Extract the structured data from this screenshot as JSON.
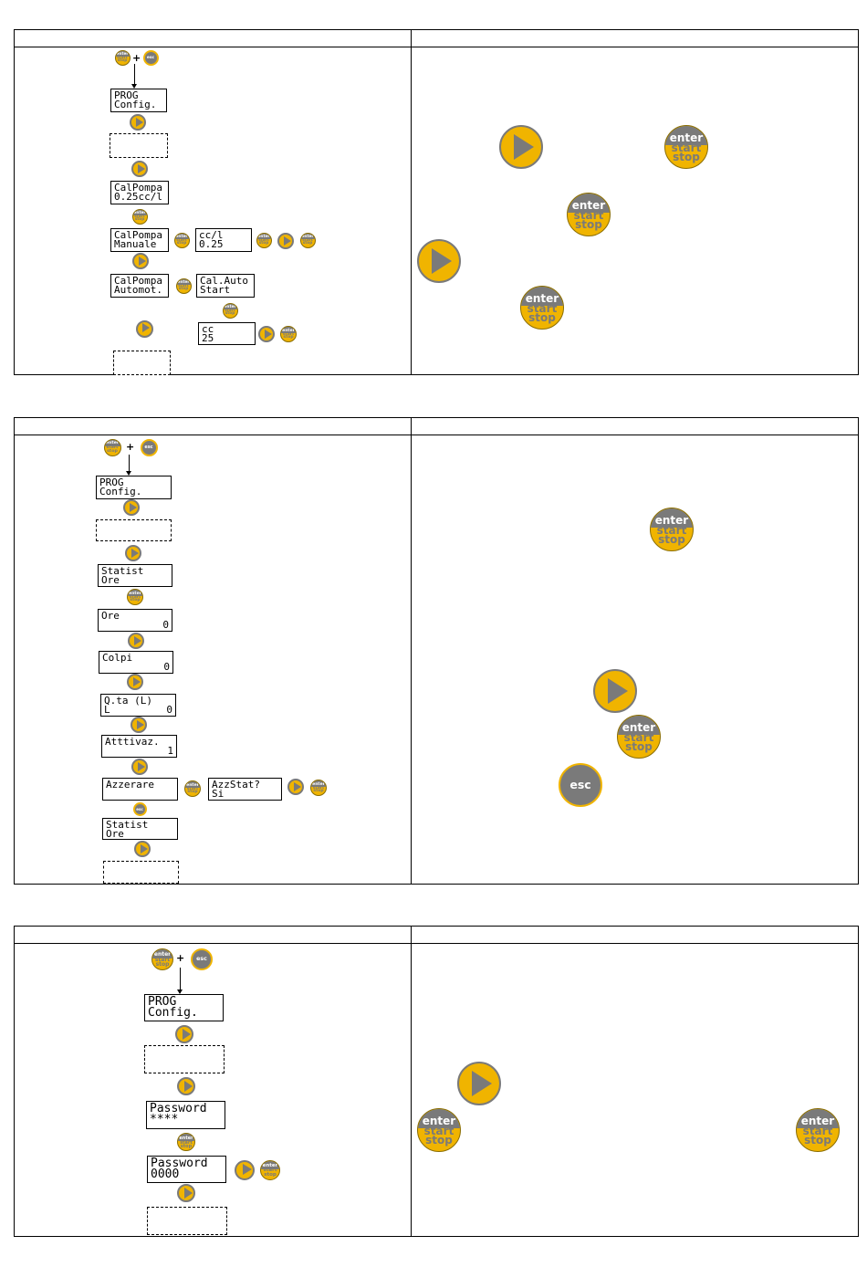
{
  "panel1": {
    "lcd": {
      "prog": [
        "PROG",
        "Config."
      ],
      "calpompa": [
        "CalPompa",
        "0.25cc/l"
      ],
      "manuale": [
        "CalPompa",
        "Manuale"
      ],
      "ccl": [
        "cc/l",
        "0.25"
      ],
      "automat": [
        "CalPompa",
        "Automot."
      ],
      "calauto": [
        "Cal.Auto",
        "Start"
      ],
      "cc": [
        "cc",
        "25"
      ]
    }
  },
  "panel2": {
    "lcd": {
      "prog": [
        "PROG",
        "Config."
      ],
      "statist1": [
        "Statist",
        "Ore"
      ],
      "ore": [
        "Ore",
        "0"
      ],
      "colpi": [
        "Colpi",
        "0"
      ],
      "qta": [
        "Q.ta (L)",
        "L",
        "0"
      ],
      "attivaz": [
        "Atttivaz.",
        "1"
      ],
      "azzerare": [
        "Azzerare"
      ],
      "azzstat": [
        "AzzStat?",
        "Si"
      ],
      "statist2": [
        "Statist",
        "Ore"
      ]
    }
  },
  "panel3": {
    "lcd": {
      "prog": [
        "PROG",
        "Config."
      ],
      "password1": [
        "Password",
        "****"
      ],
      "password2": [
        "Password",
        "0000"
      ]
    }
  },
  "buttons": {
    "enter_label": [
      "enter",
      "start",
      "stop"
    ],
    "esc_label": "esc",
    "plus": "+"
  },
  "colors": {
    "yellow": "#f0b400",
    "grey": "#7a7a7a"
  }
}
